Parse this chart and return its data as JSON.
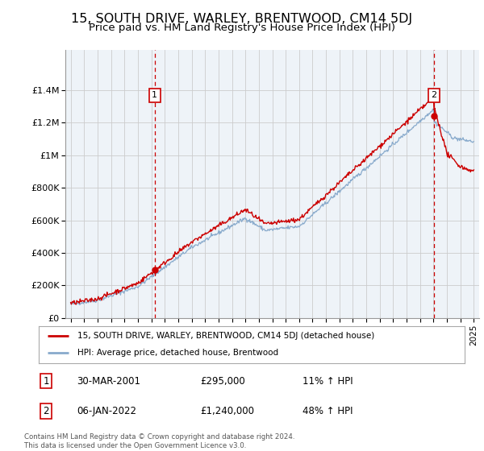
{
  "title": "15, SOUTH DRIVE, WARLEY, BRENTWOOD, CM14 5DJ",
  "subtitle": "Price paid vs. HM Land Registry's House Price Index (HPI)",
  "title_fontsize": 11.5,
  "subtitle_fontsize": 9.5,
  "ylim": [
    0,
    1650000
  ],
  "yticks": [
    0,
    200000,
    400000,
    600000,
    800000,
    1000000,
    1200000,
    1400000
  ],
  "ytick_labels": [
    "£0",
    "£200K",
    "£400K",
    "£600K",
    "£800K",
    "£1M",
    "£1.2M",
    "£1.4M"
  ],
  "legend_line1": "15, SOUTH DRIVE, WARLEY, BRENTWOOD, CM14 5DJ (detached house)",
  "legend_line2": "HPI: Average price, detached house, Brentwood",
  "annotation1_label": "1",
  "annotation1_date": "30-MAR-2001",
  "annotation1_price": "£295,000",
  "annotation1_hpi": "11% ↑ HPI",
  "annotation2_label": "2",
  "annotation2_date": "06-JAN-2022",
  "annotation2_price": "£1,240,000",
  "annotation2_hpi": "48% ↑ HPI",
  "footer": "Contains HM Land Registry data © Crown copyright and database right 2024.\nThis data is licensed under the Open Government Licence v3.0.",
  "sale1_x": 2001.25,
  "sale1_y": 295000,
  "sale2_x": 2022.02,
  "sale2_y": 1240000,
  "line_color_red": "#cc0000",
  "line_color_blue": "#88aacc",
  "dashed_color": "#cc0000",
  "bg_color": "#eef3f8",
  "grid_color": "#cccccc",
  "xlim_left": 1994.6,
  "xlim_right": 2025.4
}
